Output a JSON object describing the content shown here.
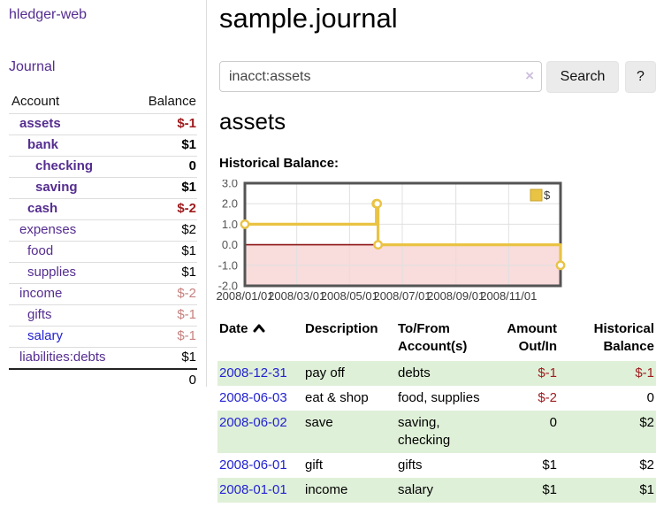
{
  "app": {
    "brand": "hledger-web"
  },
  "sidebar": {
    "journal_link": "Journal",
    "headers": {
      "account": "Account",
      "balance": "Balance"
    },
    "accounts": [
      {
        "name": "assets",
        "balance": "$-1",
        "depth": 0,
        "bold": true,
        "balance_style": "neg-strong"
      },
      {
        "name": "bank",
        "balance": "$1",
        "depth": 1,
        "bold": true,
        "balance_style": "normal"
      },
      {
        "name": "checking",
        "balance": "0",
        "depth": 2,
        "bold": true,
        "balance_style": "normal"
      },
      {
        "name": "saving",
        "balance": "$1",
        "depth": 2,
        "bold": true,
        "balance_style": "normal"
      },
      {
        "name": "cash",
        "balance": "$-2",
        "depth": 1,
        "bold": true,
        "balance_style": "neg-strong"
      },
      {
        "name": "expenses",
        "balance": "$2",
        "depth": 0,
        "bold": false,
        "balance_style": "normal"
      },
      {
        "name": "food",
        "balance": "$1",
        "depth": 1,
        "bold": false,
        "balance_style": "normal"
      },
      {
        "name": "supplies",
        "balance": "$1",
        "depth": 1,
        "bold": false,
        "balance_style": "normal"
      },
      {
        "name": "income",
        "balance": "$-2",
        "depth": 0,
        "bold": false,
        "balance_style": "neg-soft"
      },
      {
        "name": "gifts",
        "balance": "$-1",
        "depth": 1,
        "bold": false,
        "balance_style": "neg-soft"
      },
      {
        "name": "salary",
        "balance": "$-1",
        "depth": 1,
        "bold": false,
        "balance_style": "neg-soft",
        "link_color": "blue"
      },
      {
        "name": "liabilities:debts",
        "balance": "$1",
        "depth": 0,
        "bold": false,
        "balance_style": "normal"
      }
    ],
    "total": "0"
  },
  "main": {
    "title": "sample.journal",
    "search": {
      "value": "inacct:assets",
      "clear": "×",
      "search_button": "Search",
      "help_button": "?"
    },
    "account_heading": "assets",
    "chart_title": "Historical Balance:"
  },
  "chart_data": {
    "type": "line",
    "step": true,
    "series": [
      {
        "name": "$",
        "color": "#e9c344",
        "points": [
          [
            "2008-01-01",
            1
          ],
          [
            "2008-06-01",
            2
          ],
          [
            "2008-06-02",
            2
          ],
          [
            "2008-06-03",
            0
          ],
          [
            "2008-12-31",
            -1
          ]
        ]
      }
    ],
    "x_range": [
      "2008-01-01",
      "2008-12-31"
    ],
    "x_ticks": [
      "2008/01/01",
      "2008/03/01",
      "2008/05/01",
      "2008/07/01",
      "2008/09/01",
      "2008/11/01"
    ],
    "y_ticks": [
      3.0,
      2.0,
      1.0,
      0.0,
      -1.0,
      -2.0
    ],
    "ylim": [
      -2,
      3
    ],
    "grid": true,
    "negative_region_color": "#f9dcdc",
    "zero_line_color": "#8e1515",
    "border_color": "#545454",
    "grid_color": "#e0e0e0",
    "tick_label_color": "#545454",
    "legend": {
      "label": "$",
      "position": "top-right",
      "swatch_color": "#e9c344",
      "swatch_border": "#c6a32b"
    }
  },
  "register": {
    "headers": {
      "date": "Date",
      "description": "Description",
      "account": "To/From Account(s)",
      "amount": "Amount Out/In",
      "balance": "Historical Balance"
    },
    "rows": [
      {
        "date": "2008-12-31",
        "description": "pay off",
        "accounts": [
          "debts"
        ],
        "amount": "$-1",
        "balance": "$-1",
        "amount_neg": true,
        "balance_neg": true
      },
      {
        "date": "2008-06-03",
        "description": "eat & shop",
        "accounts": [
          "food, supplies"
        ],
        "amount": "$-2",
        "balance": "0",
        "amount_neg": true,
        "balance_neg": false
      },
      {
        "date": "2008-06-02",
        "description": "save",
        "accounts": [
          "saving,",
          "checking"
        ],
        "amount": "0",
        "balance": "$2",
        "amount_neg": false,
        "balance_neg": false
      },
      {
        "date": "2008-06-01",
        "description": "gift",
        "accounts": [
          "gifts"
        ],
        "amount": "$1",
        "balance": "$2",
        "amount_neg": false,
        "balance_neg": false
      },
      {
        "date": "2008-01-01",
        "description": "income",
        "accounts": [
          "salary"
        ],
        "amount": "$1",
        "balance": "$1",
        "amount_neg": false,
        "balance_neg": false
      }
    ]
  }
}
